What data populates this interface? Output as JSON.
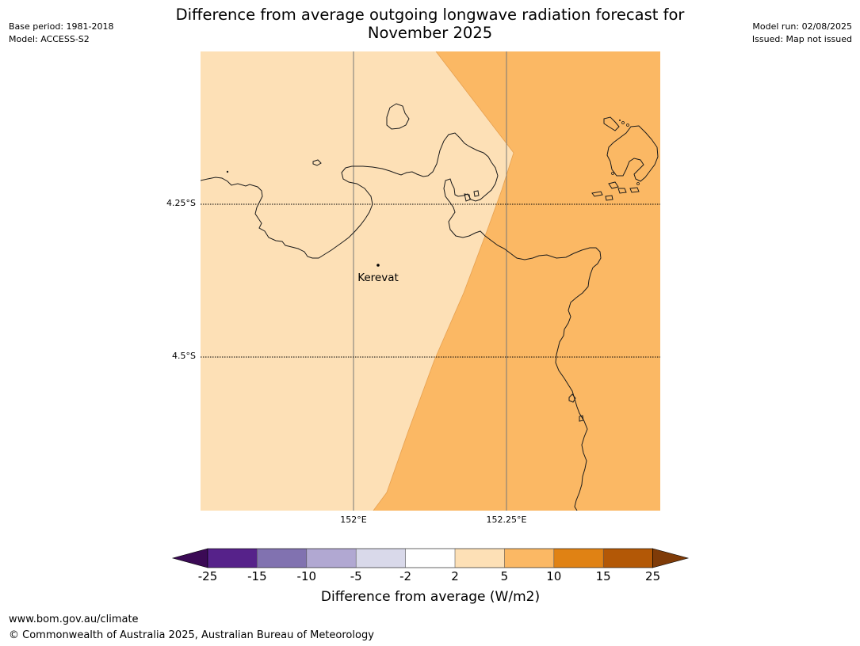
{
  "header": {
    "title_line1": "Difference from average outgoing longwave radiation forecast for",
    "title_line2": "November 2025",
    "base_period": "Base period: 1981-2018",
    "model": "Model: ACCESS-S2",
    "model_run": "Model run: 02/08/2025",
    "issued": "Issued: Map not issued"
  },
  "map": {
    "lat_labels": [
      "4.25°S",
      "4.5°S"
    ],
    "lon_labels": [
      "152°E",
      "152.25°E"
    ],
    "place_name": "Kerevat",
    "fill_colors": {
      "band_2_5": "#fde0b6",
      "band_5_10": "#fbb864"
    }
  },
  "colorbar": {
    "title": "Difference from average (W/m2)",
    "ticks": [
      "-25",
      "-15",
      "-10",
      "-5",
      "-2",
      "2",
      "5",
      "10",
      "15",
      "25"
    ],
    "colors": [
      "#3b0a55",
      "#56228a",
      "#8172b0",
      "#b1a8d2",
      "#d9d9ea",
      "#ffffff",
      "#fde0b6",
      "#fbb864",
      "#e08214",
      "#b35806",
      "#7f3b08"
    ]
  },
  "footer": {
    "url": "www.bom.gov.au/climate",
    "copyright": "© Commonwealth of Australia 2025, Australian Bureau of Meteorology"
  }
}
